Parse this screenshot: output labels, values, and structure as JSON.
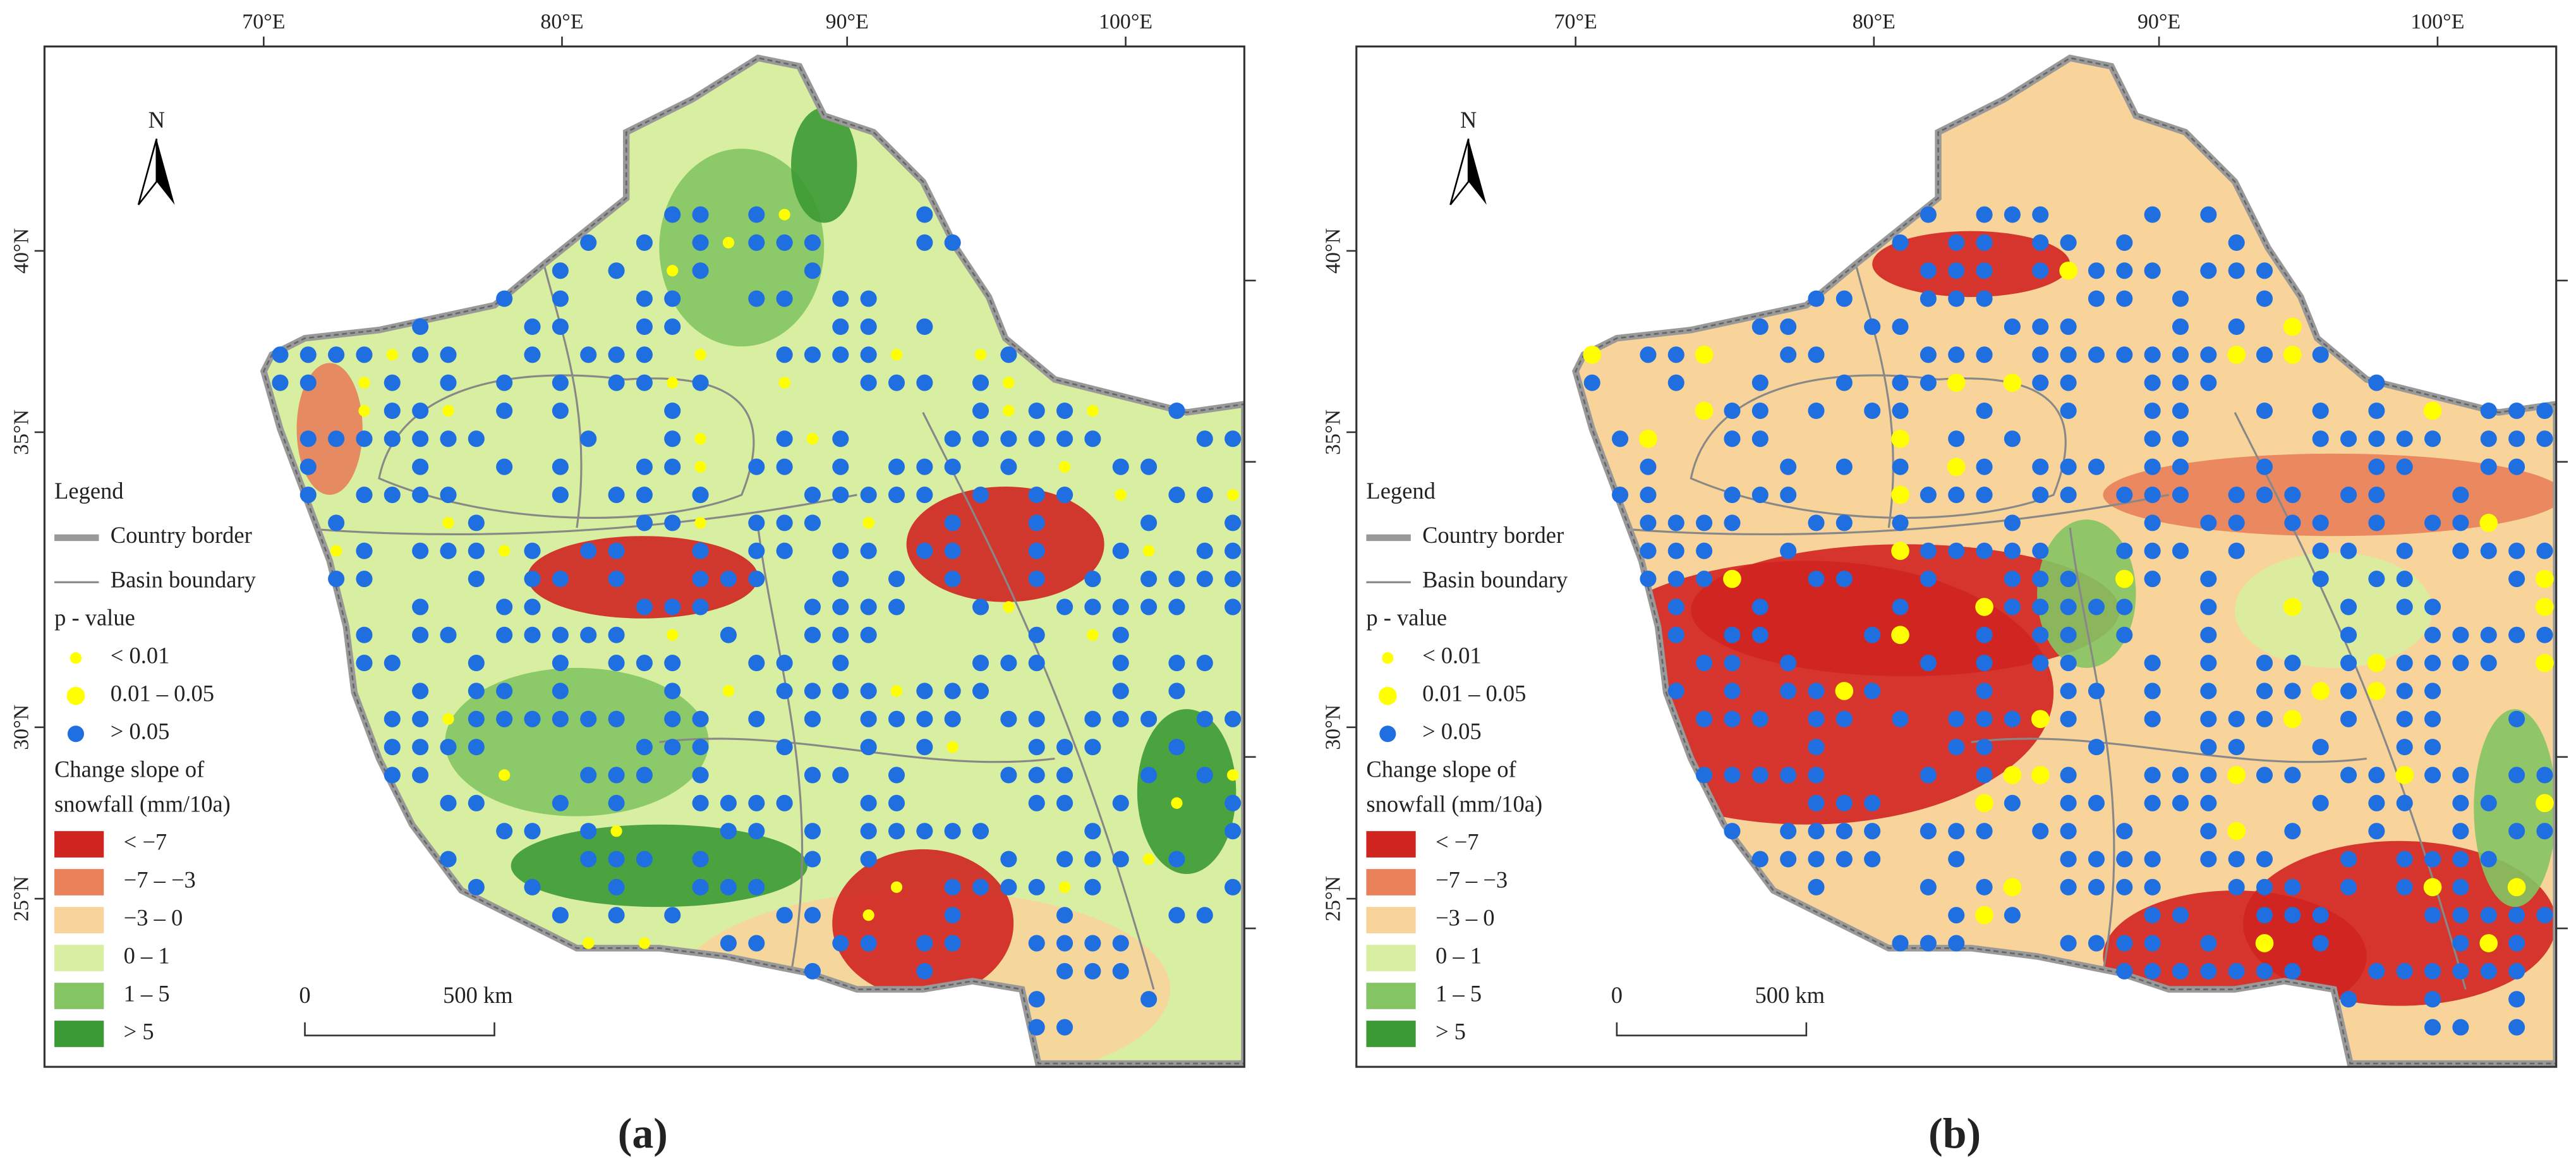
{
  "panels": [
    {
      "caption": "(a)"
    },
    {
      "caption": "(b)"
    }
  ],
  "map": {
    "x_ticks": [
      "70°E",
      "80°E",
      "90°E",
      "100°E"
    ],
    "y_ticks": [
      "40°N",
      "35°N",
      "30°N",
      "25°N"
    ],
    "north": "N",
    "scale_start": "0",
    "scale_end": "500 km"
  },
  "legend": {
    "title": "Legend",
    "country_border": "Country border",
    "basin_boundary": "Basin boundary",
    "p_value_title": "p - value",
    "p_classes": [
      "< 0.01",
      "0.01 – 0.05",
      "> 0.05"
    ],
    "p_colors": [
      "#ffff00",
      "#ffff00",
      "#1f6fe0"
    ],
    "slope_title": [
      "Change slope of",
      "snowfall (mm/10a)"
    ],
    "slope_classes": [
      "< −7",
      "−7 – −3",
      "−3 – 0",
      "0 – 1",
      "1 – 5",
      "> 5"
    ],
    "slope_colors": [
      "#d02420",
      "#e8805a",
      "#f8d49a",
      "#d8eea0",
      "#84c462",
      "#3c9a34"
    ]
  }
}
